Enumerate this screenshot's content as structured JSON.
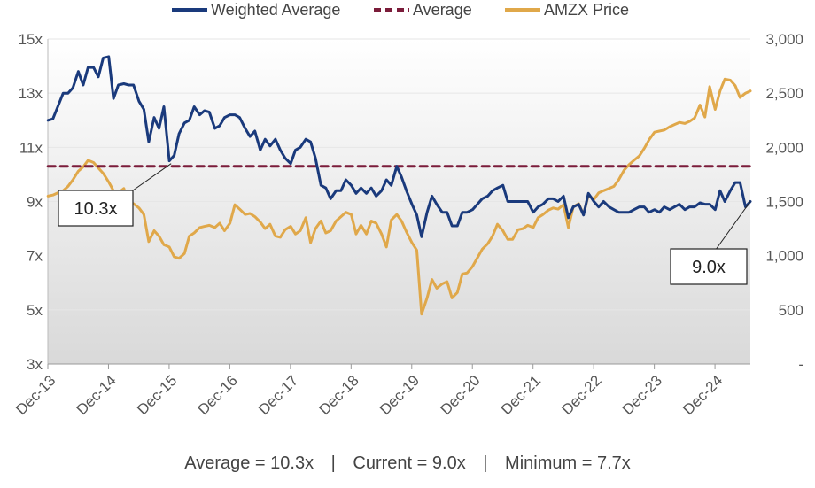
{
  "colors": {
    "weighted": "#1a3a7c",
    "average": "#7b1c3a",
    "price": "#e0a84a",
    "plot_bg_top": "#ffffff",
    "plot_bg_bottom": "#d9d9d9"
  },
  "footer": {
    "average": "Average = 10.3x",
    "separator": "|",
    "current": "Current = 9.0x",
    "minimum": "Minimum = 7.7x"
  },
  "chart_data": {
    "type": "line",
    "legend": [
      "Weighted Average",
      "Average",
      "AMZX Price"
    ],
    "legend_position": "top",
    "x_tick_labels": [
      "Dec-13",
      "Dec-14",
      "Dec-15",
      "Dec-16",
      "Dec-17",
      "Dec-18",
      "Dec-19",
      "Dec-20",
      "Dec-21",
      "Dec-22",
      "Dec-23",
      "Dec-24"
    ],
    "y_left": {
      "ticks": [
        "3x",
        "5x",
        "7x",
        "9x",
        "11x",
        "13x",
        "15x"
      ],
      "range": [
        3,
        15
      ]
    },
    "y_right": {
      "ticks": [
        "-",
        "500",
        "1,000",
        "1,500",
        "2,000",
        "2,500",
        "3,000"
      ],
      "range": [
        0,
        3000
      ]
    },
    "x_range": [
      2013.917,
      2025.5
    ],
    "callouts": [
      {
        "text": "10.3x",
        "series": "Weighted Average",
        "x": 2015.95,
        "y": 10.4
      },
      {
        "text": "9.0x",
        "series": "Weighted Average",
        "x": 2025.5,
        "y": 9.0
      }
    ],
    "series": [
      {
        "name": "Weighted Average",
        "axis": "left",
        "points": [
          [
            2013.92,
            12.0
          ],
          [
            2014.0,
            12.05
          ],
          [
            2014.08,
            12.5
          ],
          [
            2014.17,
            13.0
          ],
          [
            2014.25,
            13.0
          ],
          [
            2014.33,
            13.2
          ],
          [
            2014.42,
            13.8
          ],
          [
            2014.5,
            13.3
          ],
          [
            2014.58,
            13.95
          ],
          [
            2014.67,
            13.95
          ],
          [
            2014.75,
            13.6
          ],
          [
            2014.83,
            14.3
          ],
          [
            2014.92,
            14.35
          ],
          [
            2015.0,
            12.8
          ],
          [
            2015.08,
            13.3
          ],
          [
            2015.17,
            13.35
          ],
          [
            2015.25,
            13.3
          ],
          [
            2015.33,
            13.3
          ],
          [
            2015.42,
            12.7
          ],
          [
            2015.5,
            12.4
          ],
          [
            2015.58,
            11.2
          ],
          [
            2015.67,
            12.1
          ],
          [
            2015.75,
            11.7
          ],
          [
            2015.83,
            12.5
          ],
          [
            2015.92,
            10.5
          ],
          [
            2016.0,
            10.7
          ],
          [
            2016.08,
            11.5
          ],
          [
            2016.17,
            11.9
          ],
          [
            2016.25,
            12.0
          ],
          [
            2016.33,
            12.5
          ],
          [
            2016.42,
            12.2
          ],
          [
            2016.5,
            12.35
          ],
          [
            2016.58,
            12.3
          ],
          [
            2016.67,
            11.7
          ],
          [
            2016.75,
            11.8
          ],
          [
            2016.83,
            12.1
          ],
          [
            2016.92,
            12.2
          ],
          [
            2017.0,
            12.2
          ],
          [
            2017.08,
            12.1
          ],
          [
            2017.17,
            11.7
          ],
          [
            2017.25,
            11.4
          ],
          [
            2017.33,
            11.6
          ],
          [
            2017.42,
            10.9
          ],
          [
            2017.5,
            11.3
          ],
          [
            2017.58,
            11.05
          ],
          [
            2017.67,
            11.3
          ],
          [
            2017.75,
            10.9
          ],
          [
            2017.83,
            10.6
          ],
          [
            2017.92,
            10.4
          ],
          [
            2018.0,
            10.9
          ],
          [
            2018.08,
            11.0
          ],
          [
            2018.17,
            11.3
          ],
          [
            2018.25,
            11.2
          ],
          [
            2018.33,
            10.6
          ],
          [
            2018.42,
            9.6
          ],
          [
            2018.5,
            9.5
          ],
          [
            2018.58,
            9.1
          ],
          [
            2018.67,
            9.4
          ],
          [
            2018.75,
            9.4
          ],
          [
            2018.83,
            9.8
          ],
          [
            2018.92,
            9.6
          ],
          [
            2019.0,
            9.3
          ],
          [
            2019.08,
            9.5
          ],
          [
            2019.17,
            9.3
          ],
          [
            2019.25,
            9.5
          ],
          [
            2019.33,
            9.2
          ],
          [
            2019.42,
            9.4
          ],
          [
            2019.5,
            9.8
          ],
          [
            2019.58,
            9.6
          ],
          [
            2019.67,
            10.3
          ],
          [
            2019.75,
            9.9
          ],
          [
            2019.83,
            9.4
          ],
          [
            2019.92,
            8.9
          ],
          [
            2020.0,
            8.5
          ],
          [
            2020.08,
            7.7
          ],
          [
            2020.17,
            8.6
          ],
          [
            2020.25,
            9.2
          ],
          [
            2020.33,
            8.9
          ],
          [
            2020.42,
            8.6
          ],
          [
            2020.5,
            8.6
          ],
          [
            2020.58,
            8.1
          ],
          [
            2020.67,
            8.1
          ],
          [
            2020.75,
            8.6
          ],
          [
            2020.83,
            8.6
          ],
          [
            2020.92,
            8.7
          ],
          [
            2021.0,
            8.9
          ],
          [
            2021.08,
            9.1
          ],
          [
            2021.17,
            9.2
          ],
          [
            2021.25,
            9.4
          ],
          [
            2021.33,
            9.5
          ],
          [
            2021.42,
            9.6
          ],
          [
            2021.5,
            9.0
          ],
          [
            2021.58,
            9.0
          ],
          [
            2021.67,
            9.0
          ],
          [
            2021.75,
            9.0
          ],
          [
            2021.83,
            9.0
          ],
          [
            2021.92,
            8.6
          ],
          [
            2022.0,
            8.8
          ],
          [
            2022.08,
            8.9
          ],
          [
            2022.17,
            9.1
          ],
          [
            2022.25,
            9.1
          ],
          [
            2022.33,
            9.0
          ],
          [
            2022.42,
            9.2
          ],
          [
            2022.5,
            8.4
          ],
          [
            2022.58,
            8.8
          ],
          [
            2022.67,
            8.9
          ],
          [
            2022.75,
            8.5
          ],
          [
            2022.83,
            9.3
          ],
          [
            2022.92,
            9.0
          ],
          [
            2023.0,
            8.8
          ],
          [
            2023.08,
            9.0
          ],
          [
            2023.17,
            8.8
          ],
          [
            2023.25,
            8.7
          ],
          [
            2023.33,
            8.6
          ],
          [
            2023.42,
            8.6
          ],
          [
            2023.5,
            8.6
          ],
          [
            2023.58,
            8.7
          ],
          [
            2023.67,
            8.8
          ],
          [
            2023.75,
            8.8
          ],
          [
            2023.83,
            8.6
          ],
          [
            2023.92,
            8.7
          ],
          [
            2024.0,
            8.6
          ],
          [
            2024.08,
            8.8
          ],
          [
            2024.17,
            8.7
          ],
          [
            2024.25,
            8.8
          ],
          [
            2024.33,
            8.9
          ],
          [
            2024.42,
            8.7
          ],
          [
            2024.5,
            8.8
          ],
          [
            2024.58,
            8.8
          ],
          [
            2024.67,
            8.95
          ],
          [
            2024.75,
            8.9
          ],
          [
            2024.83,
            8.9
          ],
          [
            2024.92,
            8.7
          ],
          [
            2025.0,
            9.4
          ],
          [
            2025.08,
            9.0
          ],
          [
            2025.17,
            9.4
          ],
          [
            2025.25,
            9.7
          ],
          [
            2025.33,
            9.7
          ],
          [
            2025.42,
            8.8
          ],
          [
            2025.5,
            9.0
          ]
        ]
      },
      {
        "name": "Average",
        "axis": "left",
        "style": "dashed",
        "points": [
          [
            2013.92,
            10.3
          ],
          [
            2025.5,
            10.3
          ]
        ]
      },
      {
        "name": "AMZX Price",
        "axis": "right",
        "points": [
          [
            2013.92,
            1550
          ],
          [
            2014.0,
            1560
          ],
          [
            2014.08,
            1580
          ],
          [
            2014.17,
            1600
          ],
          [
            2014.25,
            1640
          ],
          [
            2014.33,
            1700
          ],
          [
            2014.42,
            1780
          ],
          [
            2014.5,
            1820
          ],
          [
            2014.58,
            1880
          ],
          [
            2014.67,
            1860
          ],
          [
            2014.75,
            1810
          ],
          [
            2014.83,
            1760
          ],
          [
            2014.92,
            1680
          ],
          [
            2015.0,
            1600
          ],
          [
            2015.08,
            1580
          ],
          [
            2015.17,
            1620
          ],
          [
            2015.25,
            1480
          ],
          [
            2015.33,
            1480
          ],
          [
            2015.42,
            1440
          ],
          [
            2015.5,
            1380
          ],
          [
            2015.58,
            1130
          ],
          [
            2015.67,
            1230
          ],
          [
            2015.75,
            1180
          ],
          [
            2015.83,
            1100
          ],
          [
            2015.92,
            1080
          ],
          [
            2016.0,
            990
          ],
          [
            2016.08,
            975
          ],
          [
            2016.17,
            1020
          ],
          [
            2016.25,
            1180
          ],
          [
            2016.33,
            1210
          ],
          [
            2016.42,
            1260
          ],
          [
            2016.5,
            1270
          ],
          [
            2016.58,
            1280
          ],
          [
            2016.67,
            1260
          ],
          [
            2016.75,
            1300
          ],
          [
            2016.83,
            1230
          ],
          [
            2016.92,
            1300
          ],
          [
            2017.0,
            1470
          ],
          [
            2017.08,
            1430
          ],
          [
            2017.17,
            1380
          ],
          [
            2017.25,
            1390
          ],
          [
            2017.33,
            1360
          ],
          [
            2017.42,
            1310
          ],
          [
            2017.5,
            1250
          ],
          [
            2017.58,
            1290
          ],
          [
            2017.67,
            1180
          ],
          [
            2017.75,
            1170
          ],
          [
            2017.83,
            1240
          ],
          [
            2017.92,
            1270
          ],
          [
            2018.0,
            1200
          ],
          [
            2018.08,
            1230
          ],
          [
            2018.17,
            1350
          ],
          [
            2018.25,
            1120
          ],
          [
            2018.33,
            1250
          ],
          [
            2018.42,
            1320
          ],
          [
            2018.5,
            1210
          ],
          [
            2018.58,
            1230
          ],
          [
            2018.67,
            1320
          ],
          [
            2018.75,
            1360
          ],
          [
            2018.83,
            1400
          ],
          [
            2018.92,
            1380
          ],
          [
            2019.0,
            1200
          ],
          [
            2019.08,
            1280
          ],
          [
            2019.17,
            1200
          ],
          [
            2019.25,
            1320
          ],
          [
            2019.33,
            1300
          ],
          [
            2019.42,
            1200
          ],
          [
            2019.5,
            1080
          ],
          [
            2019.58,
            1330
          ],
          [
            2019.67,
            1380
          ],
          [
            2019.75,
            1320
          ],
          [
            2019.83,
            1220
          ],
          [
            2019.92,
            1120
          ],
          [
            2020.0,
            1050
          ],
          [
            2020.08,
            460
          ],
          [
            2020.17,
            610
          ],
          [
            2020.25,
            780
          ],
          [
            2020.33,
            700
          ],
          [
            2020.42,
            740
          ],
          [
            2020.5,
            760
          ],
          [
            2020.58,
            610
          ],
          [
            2020.67,
            660
          ],
          [
            2020.75,
            830
          ],
          [
            2020.83,
            840
          ],
          [
            2020.92,
            900
          ],
          [
            2021.0,
            980
          ],
          [
            2021.08,
            1060
          ],
          [
            2021.17,
            1110
          ],
          [
            2021.25,
            1180
          ],
          [
            2021.33,
            1290
          ],
          [
            2021.42,
            1230
          ],
          [
            2021.5,
            1150
          ],
          [
            2021.58,
            1150
          ],
          [
            2021.67,
            1240
          ],
          [
            2021.75,
            1250
          ],
          [
            2021.83,
            1280
          ],
          [
            2021.92,
            1260
          ],
          [
            2022.0,
            1350
          ],
          [
            2022.08,
            1380
          ],
          [
            2022.17,
            1420
          ],
          [
            2022.25,
            1440
          ],
          [
            2022.33,
            1430
          ],
          [
            2022.42,
            1470
          ],
          [
            2022.5,
            1260
          ],
          [
            2022.58,
            1450
          ],
          [
            2022.67,
            1480
          ],
          [
            2022.75,
            1380
          ],
          [
            2022.83,
            1560
          ],
          [
            2022.92,
            1520
          ],
          [
            2023.0,
            1580
          ],
          [
            2023.08,
            1600
          ],
          [
            2023.17,
            1620
          ],
          [
            2023.25,
            1640
          ],
          [
            2023.33,
            1700
          ],
          [
            2023.42,
            1790
          ],
          [
            2023.5,
            1840
          ],
          [
            2023.58,
            1880
          ],
          [
            2023.67,
            1920
          ],
          [
            2023.75,
            1990
          ],
          [
            2023.83,
            2070
          ],
          [
            2023.92,
            2140
          ],
          [
            2024.0,
            2150
          ],
          [
            2024.08,
            2160
          ],
          [
            2024.17,
            2190
          ],
          [
            2024.25,
            2210
          ],
          [
            2024.33,
            2230
          ],
          [
            2024.42,
            2220
          ],
          [
            2024.5,
            2240
          ],
          [
            2024.58,
            2270
          ],
          [
            2024.67,
            2390
          ],
          [
            2024.75,
            2280
          ],
          [
            2024.83,
            2560
          ],
          [
            2024.92,
            2350
          ],
          [
            2025.0,
            2520
          ],
          [
            2025.08,
            2630
          ],
          [
            2025.17,
            2620
          ],
          [
            2025.25,
            2570
          ],
          [
            2025.33,
            2460
          ],
          [
            2025.42,
            2500
          ],
          [
            2025.5,
            2520
          ]
        ]
      }
    ]
  }
}
